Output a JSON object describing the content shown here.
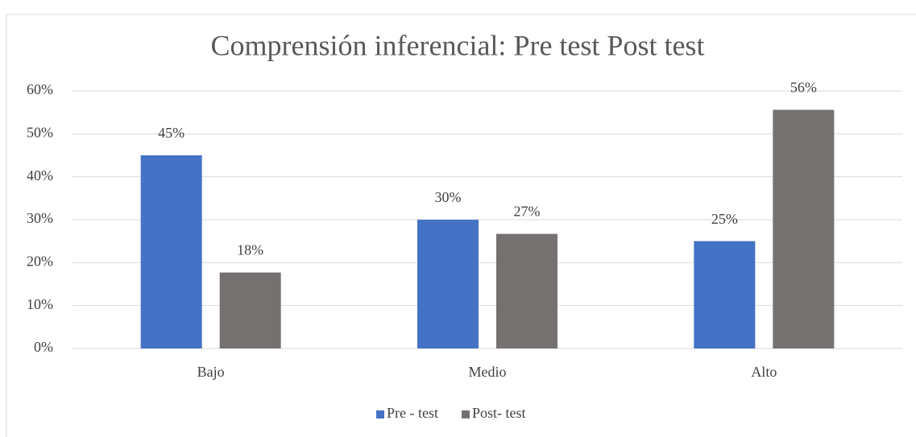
{
  "chart_data": {
    "type": "bar",
    "title": "Comprensión inferencial: Pre test  Post test",
    "categories": [
      "Bajo",
      "Medio",
      "Alto"
    ],
    "series": [
      {
        "name": "Pre - test",
        "color": "#4472c4",
        "values": [
          45,
          30,
          25
        ],
        "value_labels": [
          "45%",
          "30%",
          "25%"
        ]
      },
      {
        "name": "Post- test",
        "color": "#767171",
        "values": [
          17.7,
          26.7,
          55.6
        ],
        "value_labels": [
          "18%",
          "27%",
          "56%"
        ]
      }
    ],
    "ylim": [
      0,
      60
    ],
    "yticks": [
      {
        "value": 0,
        "label": "0%"
      },
      {
        "value": 10,
        "label": "10%"
      },
      {
        "value": 20,
        "label": "20%"
      },
      {
        "value": 30,
        "label": "30%"
      },
      {
        "value": 40,
        "label": "40%"
      },
      {
        "value": 50,
        "label": "50%"
      },
      {
        "value": 60,
        "label": "60%"
      }
    ],
    "grid": true,
    "legend": "bottom"
  }
}
